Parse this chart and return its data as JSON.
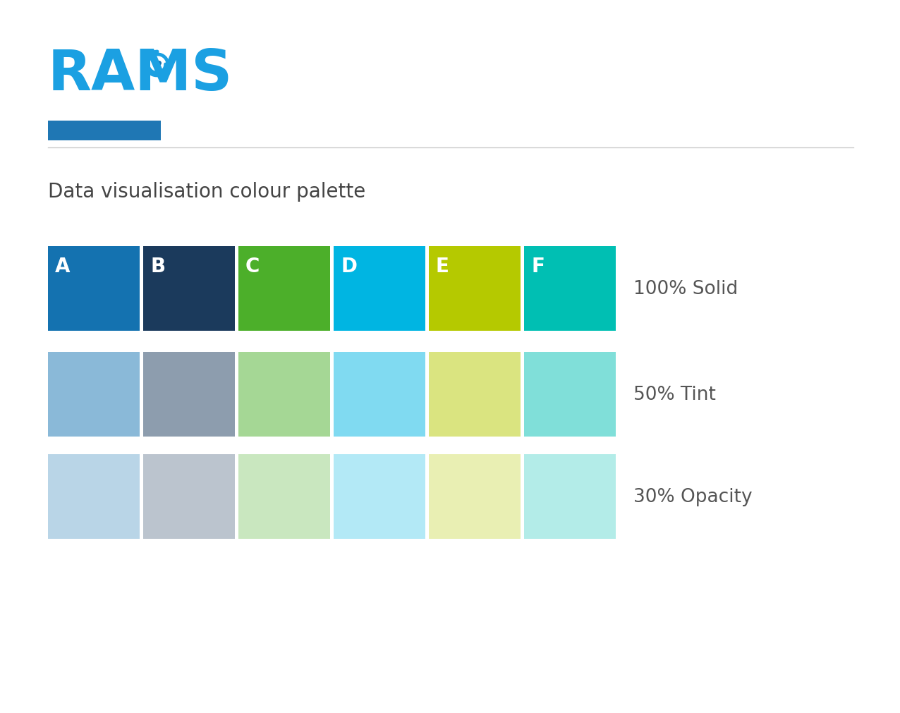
{
  "title": "Data visualisation colour palette",
  "title_fontsize": 20,
  "title_color": "#444444",
  "background_color": "#ffffff",
  "colors_solid": [
    "#1472B0",
    "#1B3A5C",
    "#4CAF2A",
    "#00B5E2",
    "#B5C900",
    "#00BFB3"
  ],
  "labels": [
    "A",
    "B",
    "C",
    "D",
    "E",
    "F"
  ],
  "row_labels": [
    "100% Solid",
    "50% Tint",
    "30% Opacity"
  ],
  "row_label_fontsize": 19,
  "row_label_color": "#555555",
  "label_fontsize": 20,
  "label_color": "#ffffff",
  "separator_color": "#cccccc",
  "logo_blue": "#1BA0E2",
  "logo_green": "#5CB335",
  "logo_dark_blue": "#1472B0"
}
